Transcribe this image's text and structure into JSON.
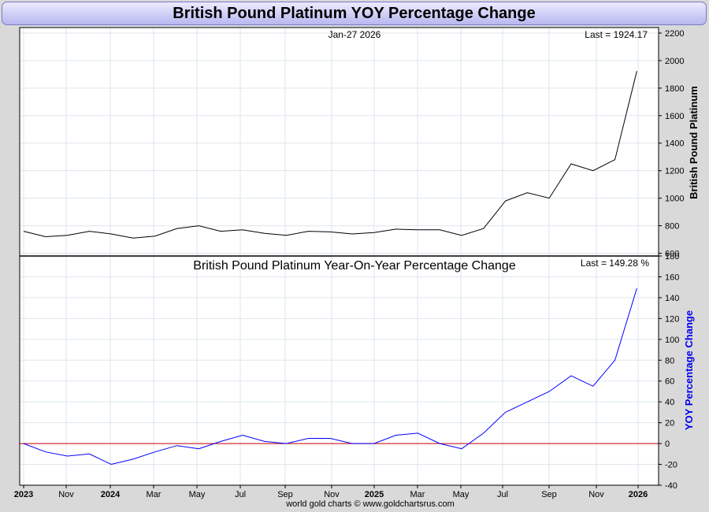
{
  "title": "British Pound Platinum YOY Percentage Change",
  "footer": "world gold charts © www.goldchartsrus.com",
  "x_labels": [
    "2023",
    "Nov",
    "2024",
    "Mar",
    "May",
    "Jul",
    "Sep",
    "Nov",
    "2025",
    "Mar",
    "May",
    "Jul",
    "Sep",
    "Nov",
    "2026"
  ],
  "x_labels_bold": [
    "2023",
    "2024",
    "2025",
    "2026"
  ],
  "chart_data": [
    {
      "type": "line",
      "date_label": "Jan-27  2026",
      "last_label": "Last = 1924.17",
      "ylabel": "British Pound Platinum",
      "ylim": [
        580,
        2240
      ],
      "yticks": [
        600,
        800,
        1000,
        1200,
        1400,
        1600,
        1800,
        2000,
        2200
      ],
      "color": "#000000",
      "x": [
        "2023-09",
        "2023-10",
        "2023-11",
        "2023-12",
        "2024-01",
        "2024-02",
        "2024-03",
        "2024-04",
        "2024-05",
        "2024-06",
        "2024-07",
        "2024-08",
        "2024-09",
        "2024-10",
        "2024-11",
        "2024-12",
        "2025-01",
        "2025-02",
        "2025-03",
        "2025-04",
        "2025-05",
        "2025-06",
        "2025-07",
        "2025-08",
        "2025-09",
        "2025-10",
        "2025-11",
        "2025-12",
        "2026-01"
      ],
      "values": [
        760,
        720,
        730,
        760,
        740,
        710,
        725,
        780,
        800,
        760,
        770,
        745,
        730,
        760,
        755,
        740,
        750,
        775,
        770,
        770,
        730,
        780,
        980,
        1040,
        1000,
        1250,
        1200,
        1280,
        1924
      ]
    },
    {
      "type": "line",
      "title": "British Pound Platinum Year-On-Year Percentage Change",
      "last_label": "Last = 149.28 %",
      "ylabel": "YOY Percentage Change",
      "ylim": [
        -40,
        180
      ],
      "yticks": [
        -40,
        -20,
        0,
        20,
        40,
        60,
        80,
        100,
        120,
        140,
        160,
        180
      ],
      "zero_line": true,
      "color": "#0000ff",
      "x": [
        "2023-09",
        "2023-10",
        "2023-11",
        "2023-12",
        "2024-01",
        "2024-02",
        "2024-03",
        "2024-04",
        "2024-05",
        "2024-06",
        "2024-07",
        "2024-08",
        "2024-09",
        "2024-10",
        "2024-11",
        "2024-12",
        "2025-01",
        "2025-02",
        "2025-03",
        "2025-04",
        "2025-05",
        "2025-06",
        "2025-07",
        "2025-08",
        "2025-09",
        "2025-10",
        "2025-11",
        "2025-12",
        "2026-01"
      ],
      "values": [
        0,
        -8,
        -12,
        -10,
        -20,
        -15,
        -8,
        -2,
        -5,
        2,
        8,
        2,
        0,
        5,
        5,
        0,
        0,
        8,
        10,
        0,
        -5,
        10,
        30,
        40,
        50,
        65,
        55,
        80,
        149
      ]
    }
  ]
}
